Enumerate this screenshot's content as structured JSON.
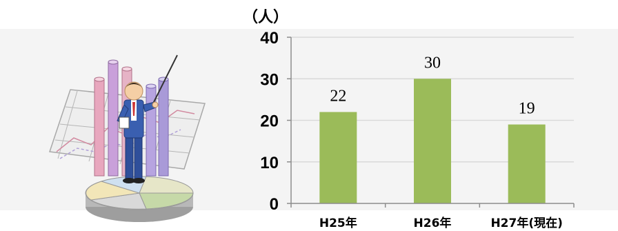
{
  "colors": {
    "bar": "#9bbb59",
    "grid": "#d9d9d9",
    "axis": "#8c8c8c",
    "panel": "#f4f4f4"
  },
  "icons": {
    "illustration": "presenter-with-charts-icon"
  },
  "chart_data": {
    "type": "bar",
    "title": "",
    "unit_label": "（人）",
    "xlabel": "",
    "ylabel": "",
    "categories": [
      "H25年",
      "H26年",
      "H27年(現在)"
    ],
    "values": [
      22,
      30,
      19
    ],
    "data_labels": [
      "22",
      "30",
      "19"
    ],
    "ylim": [
      0,
      40
    ],
    "yticks": [
      0,
      10,
      20,
      30,
      40
    ],
    "ytick_labels": [
      "0",
      "10",
      "20",
      "30",
      "40"
    ],
    "grid": true,
    "legend": "none"
  }
}
